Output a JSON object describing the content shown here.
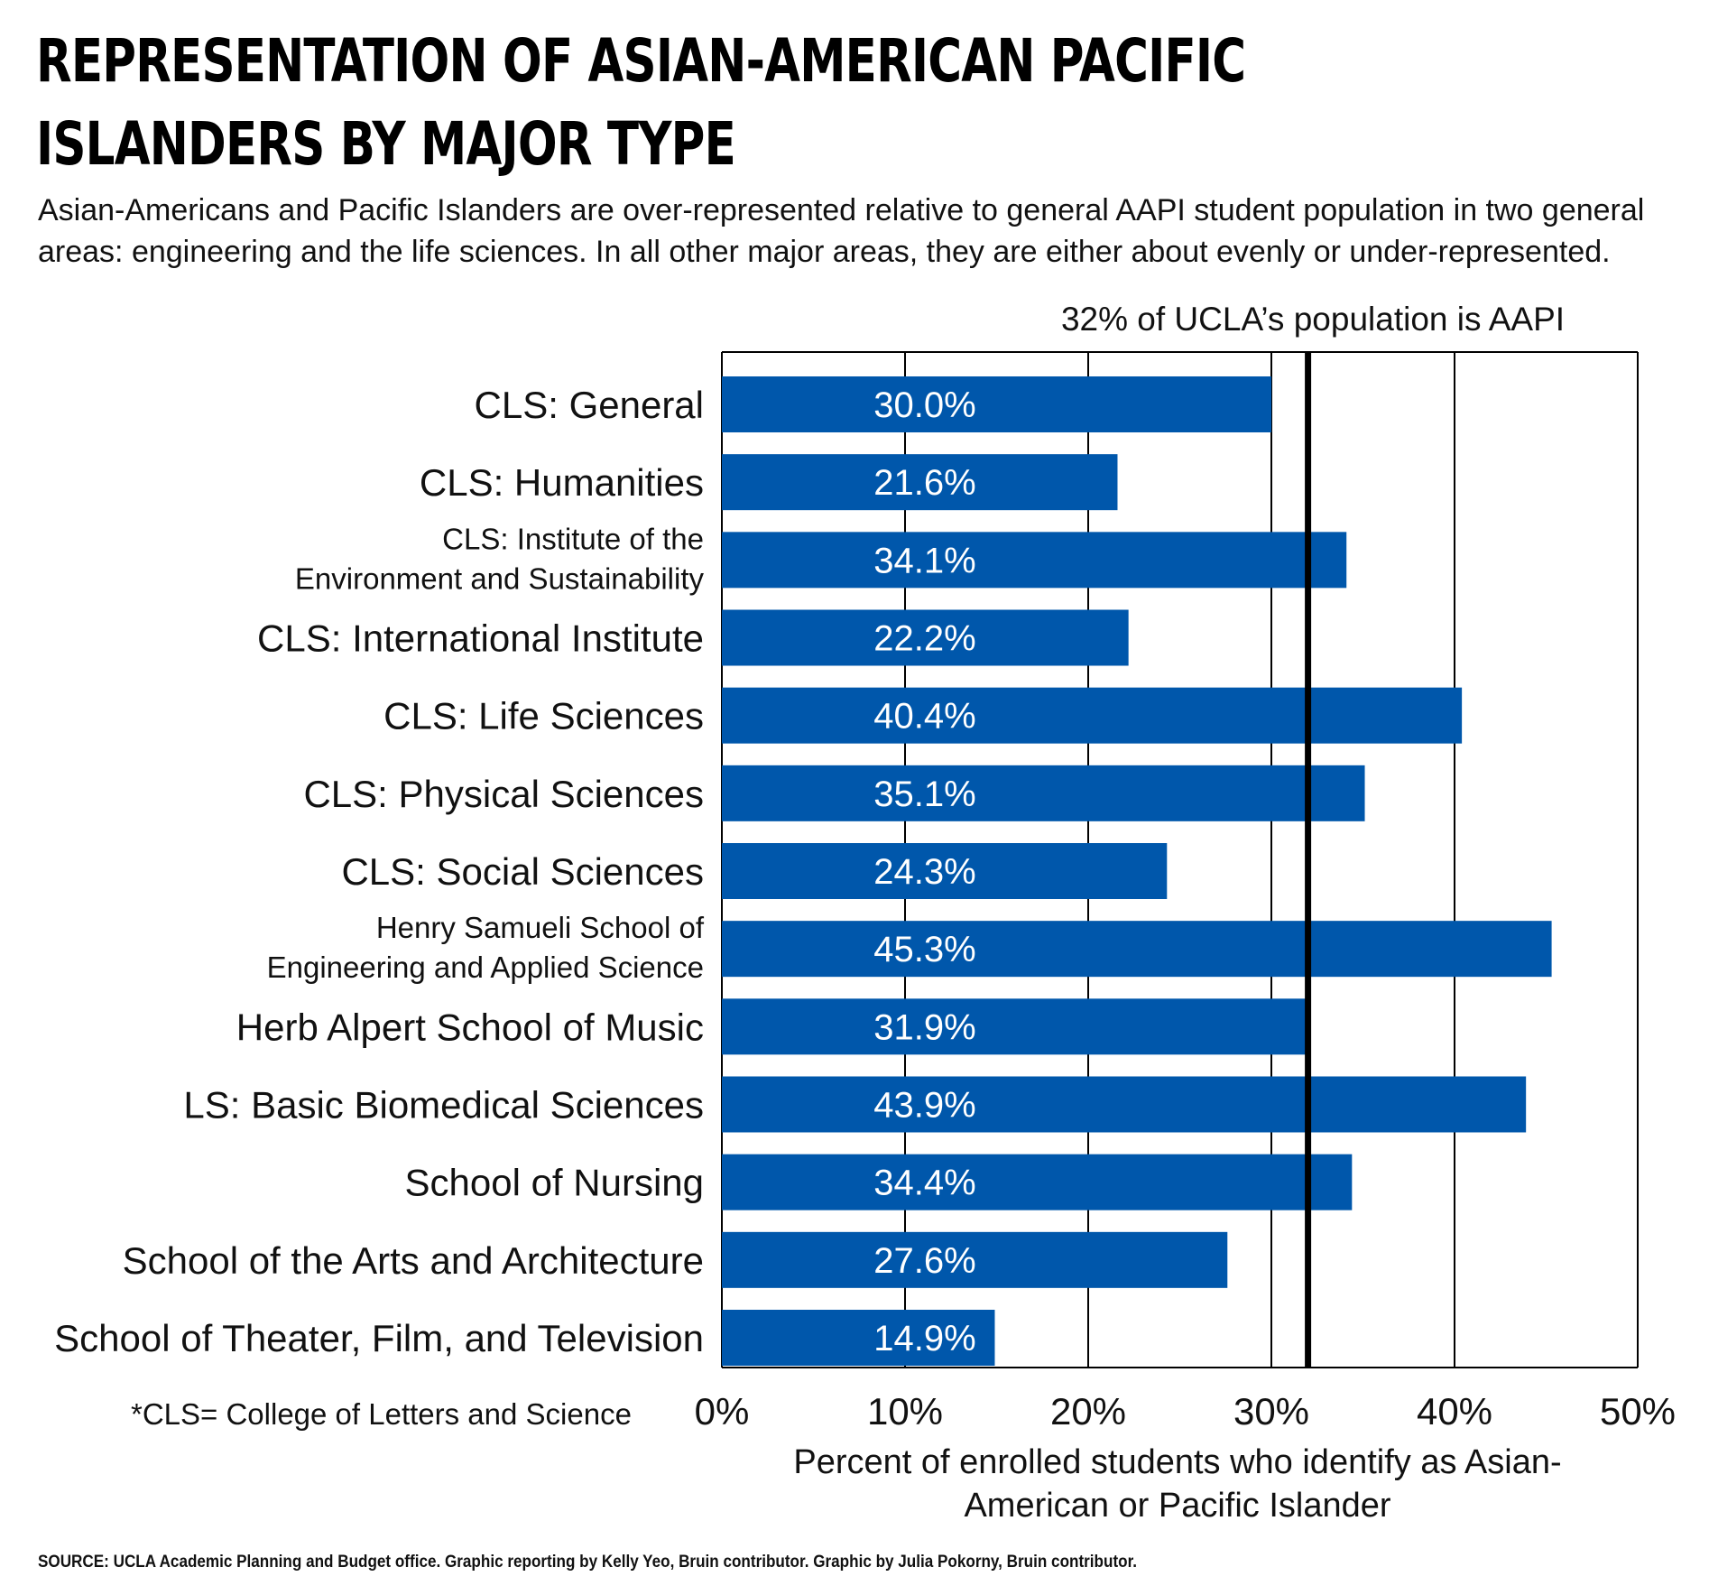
{
  "header": {
    "title": "REPRESENTATION OF ASIAN-AMERICAN PACIFIC ISLANDERS BY MAJOR TYPE",
    "subtitle": "Asian-Americans and Pacific Islanders are over-represented relative to general AAPI student population in two general areas: engineering and the life sciences. In all other major areas, they are either about evenly or under-represented."
  },
  "footnote": "*CLS= College of Letters and Science",
  "source": "SOURCE: UCLA Academic Planning and Budget office. Graphic reporting by Kelly Yeo, Bruin contributor. Graphic by Julia Pokorny, Bruin contributor.",
  "colors": {
    "bar": "#0057ab",
    "bar_label": "#ffffff",
    "grid": "#000000"
  },
  "chart_data": {
    "type": "bar",
    "orientation": "horizontal",
    "categories": [
      [
        "CLS: General"
      ],
      [
        "CLS: Humanities"
      ],
      [
        "CLS: Institute of the",
        "Environment and Sustainability"
      ],
      [
        "CLS: International Institute"
      ],
      [
        "CLS: Life Sciences"
      ],
      [
        "CLS: Physical Sciences"
      ],
      [
        "CLS: Social Sciences"
      ],
      [
        "Henry Samueli School of",
        "Engineering and Applied Science"
      ],
      [
        "Herb Alpert School of Music"
      ],
      [
        "LS: Basic Biomedical Sciences"
      ],
      [
        "School of Nursing"
      ],
      [
        "School of the Arts and Architecture"
      ],
      [
        "School of Theater, Film, and Television"
      ]
    ],
    "values": [
      30.0,
      21.6,
      34.1,
      22.2,
      40.4,
      35.1,
      24.3,
      45.3,
      31.9,
      43.9,
      34.4,
      27.6,
      14.9
    ],
    "data_labels": [
      "30.0%",
      "21.6%",
      "34.1%",
      "22.2%",
      "40.4%",
      "35.1%",
      "24.3%",
      "45.3%",
      "31.9%",
      "43.9%",
      "34.4%",
      "27.6%",
      "14.9%"
    ],
    "xlim": [
      0,
      50
    ],
    "xticks": [
      0,
      10,
      20,
      30,
      40,
      50
    ],
    "xtick_labels": [
      "0%",
      "10%",
      "20%",
      "30%",
      "40%",
      "50%"
    ],
    "xlabel": [
      "Percent of enrolled students who identify as Asian-",
      "American or Pacific Islander"
    ],
    "reference_line": {
      "value": 32,
      "label": "32% of UCLA’s population is AAPI"
    },
    "grid": true
  }
}
